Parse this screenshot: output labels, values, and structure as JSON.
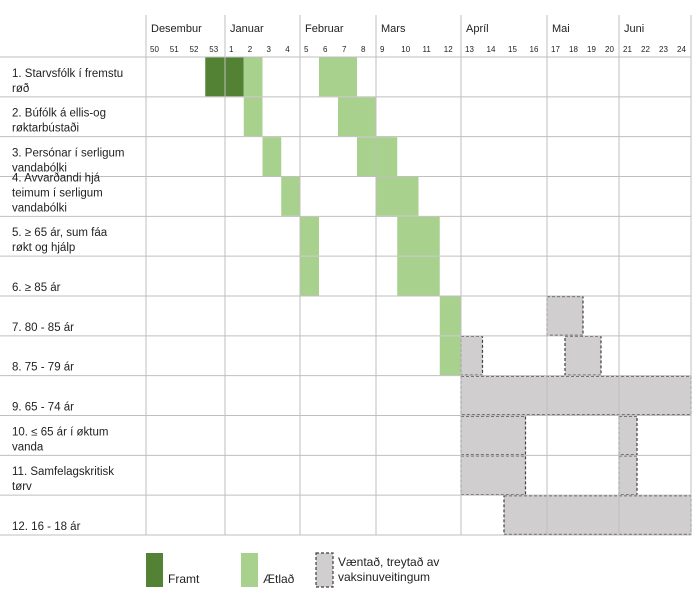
{
  "chart_data": {
    "type": "gantt",
    "title": "",
    "months": [
      {
        "label": "Desembur",
        "weeks": [
          "50",
          "51",
          "52",
          "53"
        ]
      },
      {
        "label": "Januar",
        "weeks": [
          "1",
          "2",
          "3",
          "4"
        ]
      },
      {
        "label": "Februar",
        "weeks": [
          "5",
          "6",
          "7",
          "8"
        ]
      },
      {
        "label": "Mars",
        "weeks": [
          "9",
          "10",
          "11",
          "12"
        ]
      },
      {
        "label": "Apríl",
        "weeks": [
          "13",
          "14",
          "15",
          "16"
        ]
      },
      {
        "label": "Mai",
        "weeks": [
          "17",
          "18",
          "19",
          "20"
        ]
      },
      {
        "label": "Juni",
        "weeks": [
          "21",
          "22",
          "23",
          "24"
        ]
      }
    ],
    "groups": [
      {
        "label": "1. Starvsfólk í fremstu røð",
        "lines": [
          "1. Starvsfólk í fremstu",
          "røð"
        ]
      },
      {
        "label": "2. Búfólk á ellis-og røktarbústaði",
        "lines": [
          "2. Búfólk á ellis-og",
          "røktarbústaði"
        ]
      },
      {
        "label": "3. Persónar í serligum vandabólki",
        "lines": [
          "3. Persónar í serligum",
          "vandabólki"
        ]
      },
      {
        "label": "4. Avvarðandi hjá teimum í serligum vandabólki",
        "lines": [
          "4. Avvarðandi hjá",
          "teimum í serligum",
          "vandabólki"
        ]
      },
      {
        "label": "5. ≥ 65 ár, sum fáa røkt og hjálp",
        "lines": [
          "5. ≥ 65 ár, sum fáa",
          "røkt og hjálp"
        ]
      },
      {
        "label": "6. ≥ 85 ár",
        "lines": [
          "6. ≥ 85 ár"
        ]
      },
      {
        "label": "7. 80 - 85 ár",
        "lines": [
          "7. 80 - 85 ár"
        ]
      },
      {
        "label": "8. 75 - 79 ár",
        "lines": [
          "8. 75 - 79 ár"
        ]
      },
      {
        "label": "9. 65 - 74 ár",
        "lines": [
          "9. 65 - 74 ár"
        ]
      },
      {
        "label": "10. ≤ 65 ár í øktum vanda",
        "lines": [
          "10. ≤ 65 ár í øktum",
          "vanda"
        ]
      },
      {
        "label": "11. Samfelagskritisk tørv",
        "lines": [
          "11. Samfelagskritisk",
          "tørv"
        ]
      },
      {
        "label": "12. 16 - 18 ár",
        "lines": [
          "12. 16 - 18 ár"
        ]
      }
    ],
    "status_colors": {
      "done": "#548235",
      "planned": "#a9d18e",
      "expected": "#d0cece"
    },
    "tasks": [
      {
        "group": 1,
        "status": "done",
        "start": "53",
        "end": "1"
      },
      {
        "group": 1,
        "status": "planned",
        "start": "2",
        "end": "2"
      },
      {
        "group": 1,
        "status": "planned",
        "start": "6",
        "end": "7"
      },
      {
        "group": 2,
        "status": "planned",
        "start": "2",
        "end": "2"
      },
      {
        "group": 2,
        "status": "planned",
        "start": "7",
        "end": "8"
      },
      {
        "group": 3,
        "status": "planned",
        "start": "3",
        "end": "3"
      },
      {
        "group": 3,
        "status": "planned",
        "start": "8",
        "end": "9"
      },
      {
        "group": 4,
        "status": "planned",
        "start": "4",
        "end": "4"
      },
      {
        "group": 4,
        "status": "planned",
        "start": "9",
        "end": "10"
      },
      {
        "group": 5,
        "status": "planned",
        "start": "5",
        "end": "5"
      },
      {
        "group": 5,
        "status": "planned",
        "start": "10",
        "end": "11"
      },
      {
        "group": 6,
        "status": "planned",
        "start": "5",
        "end": "5"
      },
      {
        "group": 6,
        "status": "planned",
        "start": "10",
        "end": "11"
      },
      {
        "group": 7,
        "status": "planned",
        "start": "12",
        "end": "12"
      },
      {
        "group": 7,
        "status": "expected",
        "start": "17",
        "end": "18"
      },
      {
        "group": 8,
        "status": "planned",
        "start": "12",
        "end": "12"
      },
      {
        "group": 8,
        "status": "expected",
        "start": "13",
        "end": "13"
      },
      {
        "group": 8,
        "status": "expected",
        "start": "18",
        "end": "19"
      },
      {
        "group": 9,
        "status": "expected",
        "start": "13",
        "end": "24"
      },
      {
        "group": 10,
        "status": "expected",
        "start": "13",
        "end": "15"
      },
      {
        "group": 10,
        "status": "expected",
        "start": "21",
        "end": "21"
      },
      {
        "group": 11,
        "status": "expected",
        "start": "13",
        "end": "15"
      },
      {
        "group": 11,
        "status": "expected",
        "start": "21",
        "end": "21"
      },
      {
        "group": 12,
        "status": "expected",
        "start": "15",
        "end": "24"
      }
    ],
    "legend": [
      {
        "key": "done",
        "label": "Framt"
      },
      {
        "key": "planned",
        "label": "Ætlað"
      },
      {
        "key": "expected",
        "label": "Væntað, treytað av vaksinuveitingum"
      }
    ]
  }
}
